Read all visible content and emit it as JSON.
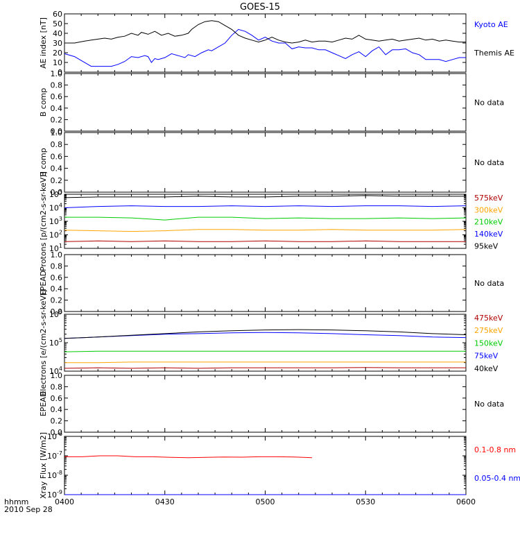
{
  "title": "GOES-15",
  "bottom": {
    "hhmm": "hhmm",
    "date": "2010 Sep 28"
  },
  "x_axis": {
    "ticks": [
      "0400",
      "0430",
      "0500",
      "0530",
      "0600"
    ],
    "range_min": [
      0,
      120
    ]
  },
  "chart_data": [
    {
      "type": "line",
      "panel": "ae-index",
      "ylabel": "AE index [nT]",
      "ylim": [
        0,
        60
      ],
      "yticks": [
        "0",
        "10",
        "20",
        "30",
        "40",
        "50",
        "60"
      ],
      "x_unit": "minutes since 0400",
      "series": [
        {
          "name": "Kyoto AE",
          "color": "#0000ff",
          "points": [
            [
              0,
              19
            ],
            [
              3,
              16
            ],
            [
              5,
              12
            ],
            [
              7,
              8
            ],
            [
              8,
              6
            ],
            [
              14,
              6
            ],
            [
              16,
              8
            ],
            [
              18,
              11
            ],
            [
              20,
              16
            ],
            [
              22,
              15
            ],
            [
              24,
              17
            ],
            [
              25,
              16
            ],
            [
              26,
              10
            ],
            [
              27,
              14
            ],
            [
              28,
              13
            ],
            [
              30,
              15
            ],
            [
              32,
              19
            ],
            [
              34,
              17
            ],
            [
              36,
              15
            ],
            [
              37,
              18
            ],
            [
              39,
              16
            ],
            [
              41,
              20
            ],
            [
              43,
              23
            ],
            [
              44,
              22
            ],
            [
              46,
              26
            ],
            [
              48,
              30
            ],
            [
              50,
              38
            ],
            [
              52,
              44
            ],
            [
              54,
              42
            ],
            [
              56,
              38
            ],
            [
              58,
              33
            ],
            [
              60,
              36
            ],
            [
              62,
              32
            ],
            [
              64,
              30
            ],
            [
              66,
              30
            ],
            [
              68,
              24
            ],
            [
              70,
              26
            ],
            [
              72,
              25
            ],
            [
              74,
              25
            ],
            [
              76,
              23
            ],
            [
              78,
              23
            ],
            [
              80,
              20
            ],
            [
              82,
              17
            ],
            [
              84,
              14
            ],
            [
              86,
              18
            ],
            [
              88,
              21
            ],
            [
              90,
              16
            ],
            [
              92,
              22
            ],
            [
              94,
              26
            ],
            [
              96,
              18
            ],
            [
              98,
              23
            ],
            [
              100,
              23
            ],
            [
              102,
              24
            ],
            [
              104,
              20
            ],
            [
              106,
              18
            ],
            [
              108,
              13
            ],
            [
              110,
              13
            ],
            [
              112,
              13
            ],
            [
              114,
              11
            ],
            [
              116,
              13
            ],
            [
              118,
              15
            ],
            [
              120,
              15
            ]
          ]
        },
        {
          "name": "Themis AE",
          "color": "#000000",
          "points": [
            [
              0,
              30
            ],
            [
              3,
              30
            ],
            [
              6,
              32
            ],
            [
              8,
              33
            ],
            [
              10,
              34
            ],
            [
              12,
              35
            ],
            [
              14,
              34
            ],
            [
              16,
              36
            ],
            [
              18,
              37
            ],
            [
              20,
              40
            ],
            [
              22,
              38
            ],
            [
              23,
              41
            ],
            [
              25,
              39
            ],
            [
              27,
              42
            ],
            [
              29,
              38
            ],
            [
              31,
              40
            ],
            [
              33,
              37
            ],
            [
              35,
              38
            ],
            [
              37,
              40
            ],
            [
              38,
              44
            ],
            [
              40,
              49
            ],
            [
              42,
              52
            ],
            [
              44,
              53
            ],
            [
              46,
              52
            ],
            [
              48,
              48
            ],
            [
              50,
              44
            ],
            [
              52,
              38
            ],
            [
              54,
              35
            ],
            [
              56,
              33
            ],
            [
              58,
              31
            ],
            [
              60,
              33
            ],
            [
              62,
              36
            ],
            [
              64,
              33
            ],
            [
              66,
              31
            ],
            [
              68,
              30
            ],
            [
              70,
              31
            ],
            [
              72,
              33
            ],
            [
              74,
              31
            ],
            [
              76,
              32
            ],
            [
              78,
              32
            ],
            [
              80,
              31
            ],
            [
              82,
              33
            ],
            [
              84,
              35
            ],
            [
              86,
              34
            ],
            [
              88,
              38
            ],
            [
              90,
              34
            ],
            [
              92,
              33
            ],
            [
              94,
              32
            ],
            [
              96,
              33
            ],
            [
              98,
              34
            ],
            [
              100,
              32
            ],
            [
              102,
              33
            ],
            [
              104,
              34
            ],
            [
              106,
              35
            ],
            [
              108,
              33
            ],
            [
              110,
              34
            ],
            [
              112,
              32
            ],
            [
              114,
              33
            ],
            [
              116,
              32
            ],
            [
              118,
              31
            ],
            [
              120,
              31
            ]
          ]
        }
      ]
    },
    {
      "type": "line",
      "panel": "b-comp-1",
      "ylabel": "B comp",
      "ylim": [
        0,
        1
      ],
      "yticks": [
        "0.0",
        "0.2",
        "0.4",
        "0.6",
        "0.8",
        "1.0"
      ],
      "note": "No data",
      "series": []
    },
    {
      "type": "line",
      "panel": "b-comp-2",
      "ylabel": "B comp",
      "ylim": [
        0,
        1
      ],
      "yticks": [
        "0.0",
        "0.2",
        "0.4",
        "0.6",
        "0.8",
        "1.0"
      ],
      "note": "No data",
      "series": []
    },
    {
      "type": "line",
      "panel": "protons",
      "ylabel": "Protons [p/(cm2-s-sr-keV)]",
      "yscale": "log",
      "ylim_log10": [
        1,
        5
      ],
      "yticks": [
        "10^1",
        "10^2",
        "10^3",
        "10^4",
        "10^5"
      ],
      "series": [
        {
          "name": "575keV",
          "color": "#b00000",
          "log10": [
            1.5,
            1.55,
            1.5,
            1.55,
            1.5,
            1.5,
            1.55,
            1.5,
            1.5,
            1.55,
            1.5,
            1.5,
            1.5
          ]
        },
        {
          "name": "300keV",
          "color": "#ffa500",
          "log10": [
            2.35,
            2.3,
            2.25,
            2.3,
            2.4,
            2.4,
            2.35,
            2.35,
            2.4,
            2.35,
            2.35,
            2.35,
            2.4
          ]
        },
        {
          "name": "210keV",
          "color": "#00cc00",
          "log10": [
            3.3,
            3.3,
            3.25,
            3.1,
            3.3,
            3.3,
            3.2,
            3.25,
            3.2,
            3.2,
            3.25,
            3.2,
            3.25
          ]
        },
        {
          "name": "140keV",
          "color": "#0000ff",
          "log10": [
            4.0,
            4.1,
            4.15,
            4.1,
            4.1,
            4.15,
            4.1,
            4.15,
            4.1,
            4.15,
            4.15,
            4.1,
            4.15
          ]
        },
        {
          "name": "95keV",
          "color": "#000000",
          "log10": [
            4.75,
            4.8,
            4.8,
            4.8,
            4.85,
            4.8,
            4.8,
            4.85,
            4.85,
            4.9,
            4.85,
            4.85,
            4.85
          ]
        }
      ]
    },
    {
      "type": "line",
      "panel": "epead-1",
      "ylabel": "EPEAD",
      "ylim": [
        0,
        1
      ],
      "yticks": [
        "0.0",
        "0.2",
        "0.4",
        "0.6",
        "0.8",
        "1.0"
      ],
      "note": "No data",
      "series": []
    },
    {
      "type": "line",
      "panel": "electrons",
      "ylabel": "Electrons [e/(cm2-s-sr-keV)]",
      "yscale": "log",
      "ylim_log10": [
        4,
        6
      ],
      "yticks": [
        "10^4",
        "10^5",
        "10^6"
      ],
      "series": [
        {
          "name": "475keV",
          "color": "#b00000",
          "log10": [
            4.1,
            4.12,
            4.1,
            4.12,
            4.1,
            4.12,
            4.12,
            4.12,
            4.12,
            4.13,
            4.12,
            4.12,
            4.12
          ]
        },
        {
          "name": "275keV",
          "color": "#ffa500",
          "log10": [
            4.3,
            4.3,
            4.32,
            4.32,
            4.32,
            4.32,
            4.32,
            4.32,
            4.32,
            4.32,
            4.32,
            4.32,
            4.32
          ]
        },
        {
          "name": "150keV",
          "color": "#00cc00",
          "log10": [
            4.68,
            4.7,
            4.7,
            4.7,
            4.7,
            4.7,
            4.7,
            4.7,
            4.7,
            4.7,
            4.7,
            4.7,
            4.7
          ]
        },
        {
          "name": "75keV",
          "color": "#0000ff",
          "log10": [
            5.15,
            5.2,
            5.25,
            5.3,
            5.32,
            5.35,
            5.36,
            5.35,
            5.32,
            5.28,
            5.25,
            5.2,
            5.18
          ]
        },
        {
          "name": "40keV",
          "color": "#000000",
          "log10": [
            5.15,
            5.2,
            5.26,
            5.32,
            5.38,
            5.42,
            5.45,
            5.46,
            5.45,
            5.42,
            5.38,
            5.32,
            5.28
          ]
        }
      ]
    },
    {
      "type": "line",
      "panel": "epead-2",
      "ylabel": "EPEAD",
      "ylim": [
        0,
        1
      ],
      "yticks": [
        "0.0",
        "0.2",
        "0.4",
        "0.6",
        "0.8",
        "1.0"
      ],
      "note": "No data",
      "series": []
    },
    {
      "type": "line",
      "panel": "xray",
      "ylabel": "Xray Flux [W/m2]",
      "yscale": "log",
      "ylim_log10": [
        -9,
        -6
      ],
      "yticks": [
        "10^-9",
        "10^-8",
        "10^-7",
        "10^-6"
      ],
      "series": [
        {
          "name": "0.1-0.8 nm",
          "color": "#ff0000",
          "x_range": [
            0,
            74
          ],
          "log10": [
            -7.05,
            -7.05,
            -7.0,
            -7.0,
            -7.05,
            -7.05,
            -7.08,
            -7.1,
            -7.08,
            -7.06,
            -7.07,
            -7.05,
            -7.05,
            -7.06,
            -7.1
          ]
        },
        {
          "name": "0.05-0.4 nm",
          "color": "#0000ff",
          "x_range": [
            0,
            120
          ],
          "log10": [
            -9.0,
            -9.0,
            -9.0,
            -9.0,
            -9.0,
            -9.0,
            -9.0,
            -9.0,
            -9.0,
            -9.0,
            -9.0,
            -9.0,
            -9.0,
            -9.0,
            -9.0
          ]
        }
      ]
    }
  ]
}
